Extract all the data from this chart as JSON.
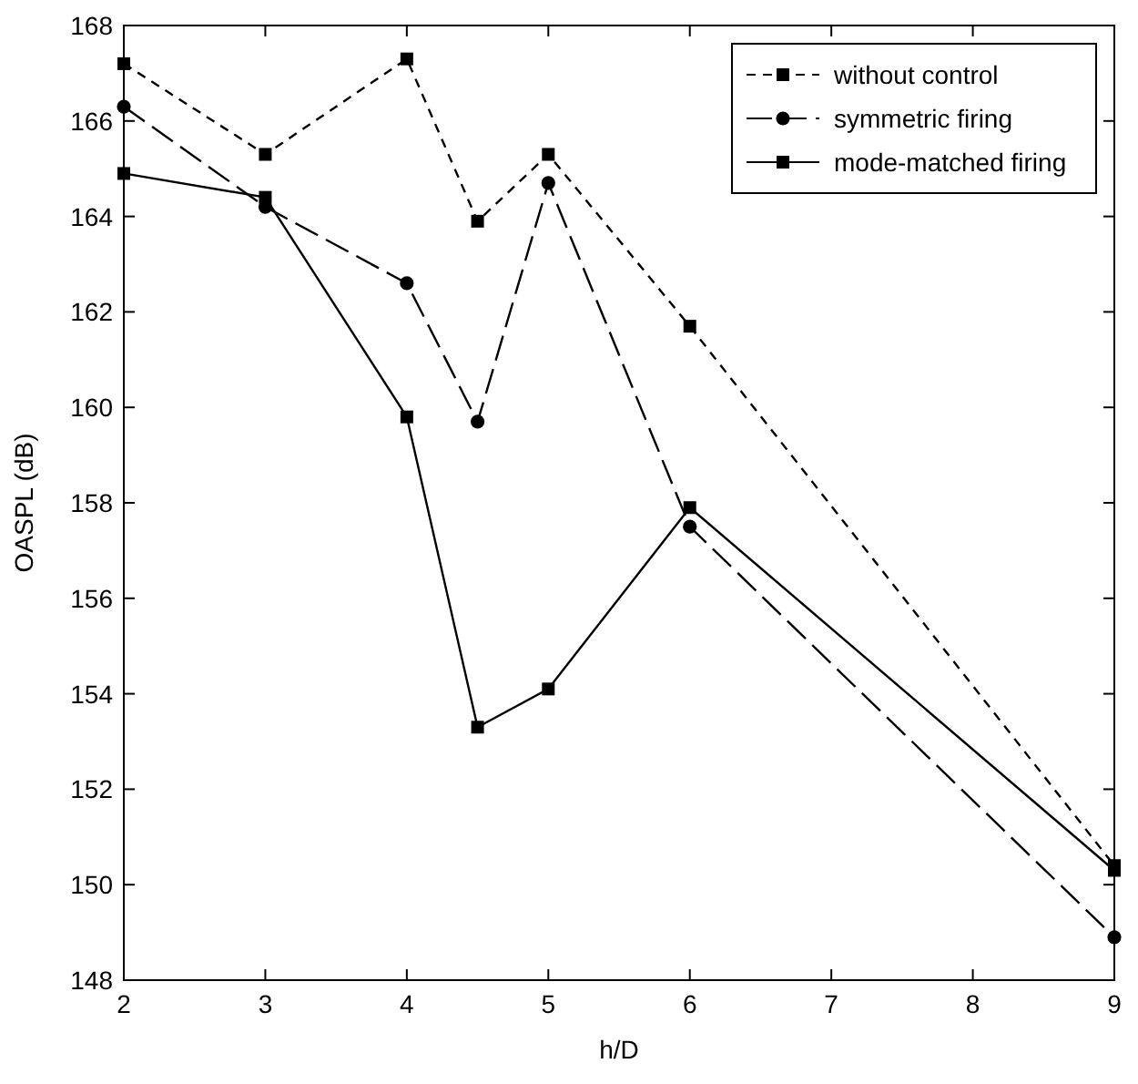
{
  "chart_data": {
    "type": "line",
    "xlabel": "h/D",
    "ylabel": "OASPL (dB)",
    "xlim": [
      2,
      9
    ],
    "ylim": [
      148,
      168
    ],
    "xticks": [
      2,
      3,
      4,
      5,
      6,
      7,
      8,
      9
    ],
    "yticks": [
      148,
      150,
      152,
      154,
      156,
      158,
      160,
      162,
      164,
      166,
      168
    ],
    "legend": "top right",
    "series": [
      {
        "name": "without control",
        "color": "#000000",
        "line_style": "dashed",
        "marker": "square",
        "x": [
          2,
          3,
          4,
          4.5,
          5,
          6,
          9
        ],
        "values": [
          167.2,
          165.3,
          167.3,
          163.9,
          165.3,
          161.7,
          150.4
        ]
      },
      {
        "name": "symmetric firing",
        "color": "#000000",
        "line_style": "longdash",
        "marker": "circle",
        "x": [
          2,
          3,
          4,
          4.5,
          5,
          6,
          9
        ],
        "values": [
          166.3,
          164.2,
          162.6,
          159.7,
          164.7,
          157.5,
          148.9
        ]
      },
      {
        "name": "mode-matched firing",
        "color": "#000000",
        "line_style": "solid",
        "marker": "square",
        "x": [
          2,
          3,
          4,
          4.5,
          5,
          6,
          9
        ],
        "values": [
          164.9,
          164.4,
          159.8,
          153.3,
          154.1,
          157.9,
          150.3
        ]
      }
    ]
  }
}
